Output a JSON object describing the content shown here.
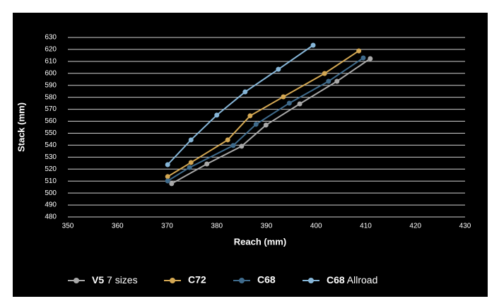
{
  "chart_data": {
    "type": "line",
    "x_label": "Reach (mm)",
    "y_label": "Stack (mm)",
    "xlim": [
      350,
      430
    ],
    "xticks": [
      350,
      360,
      370,
      380,
      390,
      400,
      410,
      420,
      430
    ],
    "ylim": [
      480,
      630
    ],
    "yticks": [
      480,
      490,
      500,
      510,
      520,
      530,
      540,
      550,
      560,
      570,
      580,
      590,
      600,
      610,
      620,
      630
    ],
    "grid": true,
    "series": [
      {
        "name": "V5 7 sizes",
        "color": "#a9a9a9",
        "x": [
          370.9,
          378.0,
          385.0,
          389.9,
          396.7,
          404.2,
          410.9
        ],
        "values": [
          507.8,
          524.3,
          539.1,
          556.8,
          574.5,
          593.4,
          612.3
        ]
      },
      {
        "name": "C72",
        "color": "#d4a853",
        "x": [
          370.1,
          374.8,
          382.2,
          386.7,
          393.4,
          401.7,
          408.6
        ],
        "values": [
          513.7,
          525.5,
          544.4,
          564.5,
          580.4,
          599.9,
          618.8
        ]
      },
      {
        "name": "C68",
        "color": "#3f6b8c",
        "x": [
          370.1,
          374.5,
          383.3,
          387.9,
          394.6,
          402.5,
          409.5
        ],
        "values": [
          510.1,
          521.3,
          539.7,
          557.4,
          575.1,
          593.4,
          612.9
        ]
      },
      {
        "name": "C68 Allroad",
        "color": "#86b6d8",
        "x": [
          370.1,
          374.8,
          380.0,
          385.7,
          392.4,
          399.4
        ],
        "values": [
          523.7,
          544.4,
          565.1,
          584.5,
          603.4,
          623.5
        ]
      }
    ]
  }
}
